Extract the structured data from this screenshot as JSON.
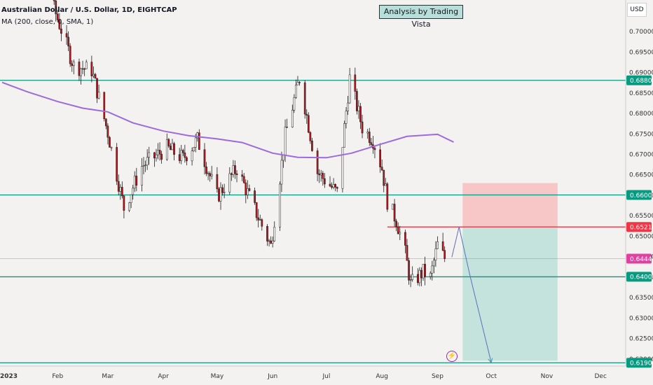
{
  "header": {
    "symbol_line": "Australian Dollar / U.S. Dollar, 1D, EIGHTCAP",
    "indicator_line": "MA (200, close, 0, SMA, 1)"
  },
  "banner": "Analysis by Trading Vista",
  "currency": "USD",
  "event_icon": "lightning-bolt-icon",
  "chart_data": {
    "type": "candlestick",
    "instrument": "Australian Dollar / U.S. Dollar",
    "timeframe": "1D",
    "y_ticks": [
      0.7,
      0.695,
      0.69,
      0.685,
      0.68,
      0.675,
      0.67,
      0.665,
      0.66,
      0.655,
      0.65,
      0.645,
      0.64,
      0.635,
      0.63,
      0.625,
      0.62
    ],
    "y_tick_labels": [
      "0.70000",
      "0.69500",
      "0.69000",
      "0.68500",
      "0.68000",
      "0.67500",
      "0.67000",
      "0.66500",
      "0.66000",
      "0.65500",
      "0.65000",
      "0.64500",
      "0.64000",
      "0.63500",
      "0.63000",
      "0.62500",
      "0.62000"
    ],
    "ylim": [
      0.6175,
      0.7042
    ],
    "x_labels": [
      "2023",
      "Feb",
      "Mar",
      "Apr",
      "May",
      "Jun",
      "Jul",
      "Aug",
      "Sep",
      "Oct",
      "Nov",
      "Dec"
    ],
    "x_label_dates": [
      "2023-01-01",
      "2023-02-01",
      "2023-03-01",
      "2023-04-01",
      "2023-05-01",
      "2023-06-01",
      "2023-07-01",
      "2023-08-01",
      "2023-09-01",
      "2023-10-01",
      "2023-11-01",
      "2023-12-01"
    ],
    "xlim": [
      "2023-01-01",
      "2023-12-15"
    ],
    "horizontal_levels": [
      {
        "value": 0.688,
        "label": "0.68800",
        "color": "#089981"
      },
      {
        "value": 0.66,
        "label": "0.66000",
        "color": "#089981"
      },
      {
        "value": 0.65218,
        "label": "0.65218",
        "color": "#f23645"
      },
      {
        "value": 0.64443,
        "label": "0.64443",
        "color": "#e040a0"
      },
      {
        "value": 0.64,
        "label": "0.64000",
        "color": "#089981"
      },
      {
        "value": 0.619,
        "label": "0.61900",
        "color": "#089981"
      }
    ],
    "key_points": [
      {
        "date": "2023-01-26",
        "price": 0.7142
      },
      {
        "date": "2023-01-30",
        "price": 0.7055
      },
      {
        "date": "2023-02-10",
        "price": 0.6915
      },
      {
        "date": "2023-02-20",
        "price": 0.6905
      },
      {
        "date": "2023-03-01",
        "price": 0.6752
      },
      {
        "date": "2023-03-10",
        "price": 0.6568
      },
      {
        "date": "2023-03-20",
        "price": 0.667
      },
      {
        "date": "2023-04-03",
        "price": 0.6715
      },
      {
        "date": "2023-04-12",
        "price": 0.6689
      },
      {
        "date": "2023-04-20",
        "price": 0.6735
      },
      {
        "date": "2023-05-01",
        "price": 0.6596
      },
      {
        "date": "2023-05-12",
        "price": 0.6665
      },
      {
        "date": "2023-05-24",
        "price": 0.6545
      },
      {
        "date": "2023-05-31",
        "price": 0.6475
      },
      {
        "date": "2023-06-08",
        "price": 0.6745
      },
      {
        "date": "2023-06-16",
        "price": 0.6885
      },
      {
        "date": "2023-06-26",
        "price": 0.6655
      },
      {
        "date": "2023-07-07",
        "price": 0.6605
      },
      {
        "date": "2023-07-14",
        "price": 0.6885
      },
      {
        "date": "2023-07-21",
        "price": 0.6765
      },
      {
        "date": "2023-07-27",
        "price": 0.6735
      },
      {
        "date": "2023-08-01",
        "price": 0.6665
      },
      {
        "date": "2023-08-04",
        "price": 0.6585
      },
      {
        "date": "2023-08-09",
        "price": 0.6538
      },
      {
        "date": "2023-08-14",
        "price": 0.6458
      },
      {
        "date": "2023-08-17",
        "price": 0.6382
      },
      {
        "date": "2023-08-24",
        "price": 0.6412
      },
      {
        "date": "2023-08-28",
        "price": 0.6398
      },
      {
        "date": "2023-09-01",
        "price": 0.6478
      },
      {
        "date": "2023-09-05",
        "price": 0.6444
      }
    ],
    "ma200": {
      "name": "MA (200, close, 0, SMA, 1)",
      "color": "#9c6ade",
      "points": [
        {
          "date": "2023-01-01",
          "value": 0.6875
        },
        {
          "date": "2023-01-15",
          "value": 0.6852
        },
        {
          "date": "2023-02-01",
          "value": 0.6828
        },
        {
          "date": "2023-02-15",
          "value": 0.6812
        },
        {
          "date": "2023-03-01",
          "value": 0.6803
        },
        {
          "date": "2023-03-15",
          "value": 0.6776
        },
        {
          "date": "2023-04-01",
          "value": 0.6756
        },
        {
          "date": "2023-04-15",
          "value": 0.6745
        },
        {
          "date": "2023-05-01",
          "value": 0.6737
        },
        {
          "date": "2023-05-15",
          "value": 0.6728
        },
        {
          "date": "2023-06-01",
          "value": 0.6702
        },
        {
          "date": "2023-06-15",
          "value": 0.6692
        },
        {
          "date": "2023-07-01",
          "value": 0.6691
        },
        {
          "date": "2023-07-15",
          "value": 0.6702
        },
        {
          "date": "2023-08-01",
          "value": 0.6725
        },
        {
          "date": "2023-08-15",
          "value": 0.6743
        },
        {
          "date": "2023-09-01",
          "value": 0.6748
        },
        {
          "date": "2023-09-10",
          "value": 0.6729
        }
      ]
    },
    "position": {
      "type": "short",
      "start": "2023-09-15",
      "end": "2023-11-07",
      "entry": 0.65218,
      "stop": 0.6629,
      "target": 0.6195,
      "stop_zone_color": "#f7c6c6",
      "target_zone_color": "#c4e3dd"
    },
    "projection": [
      {
        "date": "2023-09-09",
        "price": 0.6448
      },
      {
        "date": "2023-09-13",
        "price": 0.6522
      },
      {
        "date": "2023-09-19",
        "price": 0.6405
      },
      {
        "date": "2023-10-01",
        "price": 0.619
      }
    ]
  }
}
